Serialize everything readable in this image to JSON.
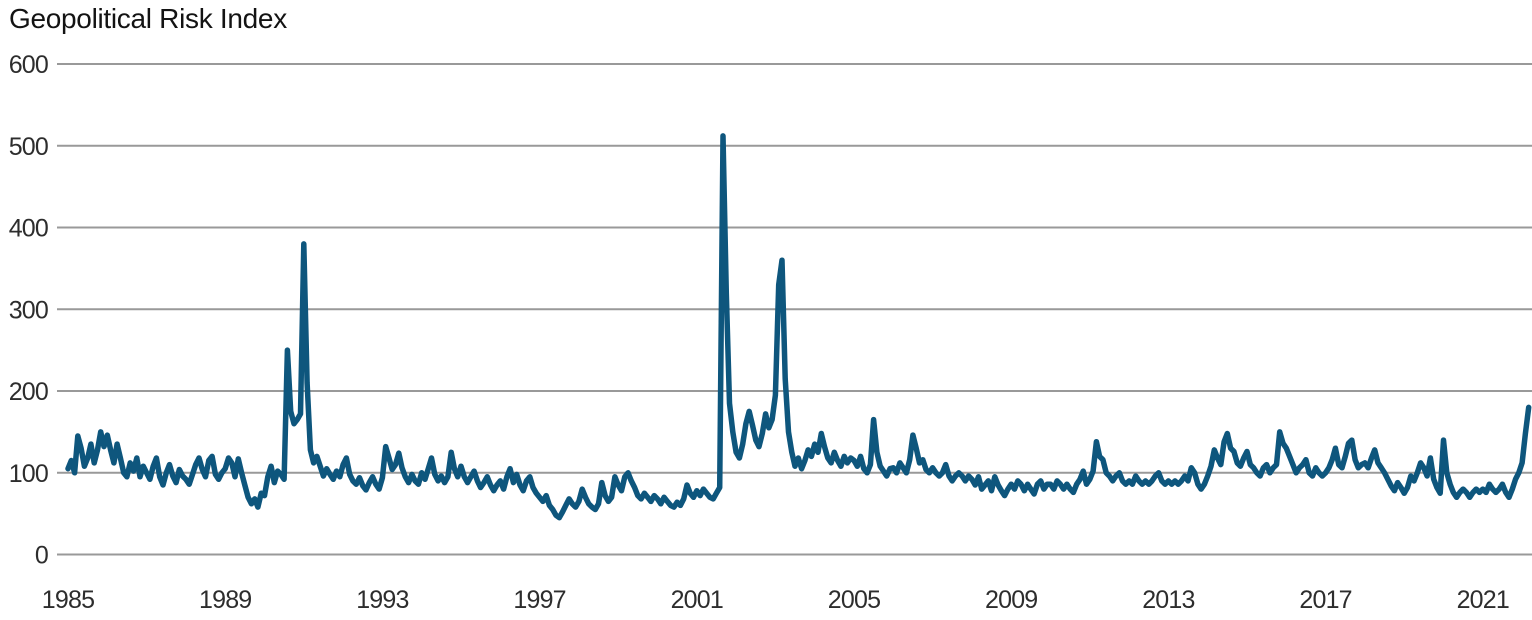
{
  "chart_data": {
    "type": "line",
    "title": "Geopolitical Risk Index",
    "xlabel": "",
    "ylabel": "",
    "x_unit": "month",
    "x_start": "1985-01",
    "x_end": "2022-03",
    "xlim": [
      1985,
      2022.25
    ],
    "ylim": [
      0,
      600
    ],
    "yticks": [
      0,
      100,
      200,
      300,
      400,
      500,
      600
    ],
    "xticks": [
      1985,
      1989,
      1993,
      1997,
      2001,
      2005,
      2009,
      2013,
      2017,
      2021
    ],
    "grid": "horizontal",
    "legend": "none",
    "colors": {
      "line": "#0e567d",
      "grid": "#999999",
      "tick_text": "#2d2d2d",
      "title_text": "#131313",
      "background": "#ffffff"
    },
    "series": [
      {
        "name": "Geopolitical Risk Index (monthly)",
        "color": "#0e567d",
        "values": [
          105,
          115,
          100,
          145,
          130,
          108,
          118,
          135,
          112,
          128,
          150,
          132,
          146,
          128,
          112,
          135,
          118,
          100,
          95,
          112,
          102,
          118,
          95,
          108,
          100,
          92,
          108,
          118,
          95,
          85,
          100,
          110,
          96,
          88,
          104,
          96,
          92,
          86,
          98,
          110,
          118,
          104,
          95,
          115,
          120,
          98,
          92,
          100,
          105,
          118,
          112,
          95,
          117,
          100,
          85,
          70,
          62,
          68,
          58,
          75,
          72,
          95,
          108,
          88,
          102,
          98,
          92,
          250,
          175,
          160,
          165,
          172,
          380,
          210,
          128,
          112,
          120,
          108,
          96,
          105,
          98,
          92,
          102,
          95,
          110,
          118,
          98,
          90,
          86,
          94,
          84,
          79,
          88,
          95,
          86,
          80,
          94,
          132,
          118,
          104,
          110,
          124,
          106,
          95,
          88,
          98,
          90,
          86,
          100,
          92,
          105,
          118,
          98,
          90,
          96,
          88,
          95,
          125,
          105,
          95,
          108,
          95,
          88,
          95,
          102,
          90,
          82,
          88,
          95,
          85,
          78,
          85,
          90,
          80,
          95,
          105,
          88,
          98,
          85,
          78,
          90,
          95,
          82,
          75,
          70,
          65,
          72,
          60,
          55,
          48,
          45,
          52,
          60,
          68,
          62,
          58,
          65,
          80,
          70,
          62,
          58,
          55,
          62,
          88,
          72,
          65,
          70,
          95,
          85,
          78,
          95,
          100,
          90,
          82,
          72,
          68,
          75,
          70,
          65,
          72,
          68,
          62,
          70,
          65,
          60,
          58,
          64,
          60,
          68,
          85,
          75,
          70,
          78,
          72,
          80,
          75,
          70,
          68,
          75,
          82,
          512,
          320,
          185,
          150,
          125,
          118,
          135,
          160,
          175,
          158,
          140,
          132,
          148,
          172,
          155,
          165,
          195,
          330,
          360,
          215,
          150,
          125,
          108,
          118,
          105,
          115,
          128,
          120,
          135,
          125,
          148,
          132,
          118,
          112,
          125,
          115,
          108,
          120,
          112,
          118,
          115,
          108,
          120,
          105,
          100,
          110,
          165,
          125,
          108,
          102,
          96,
          105,
          106,
          100,
          112,
          106,
          100,
          116,
          146,
          130,
          112,
          116,
          104,
          100,
          106,
          100,
          96,
          100,
          110,
          96,
          90,
          96,
          100,
          96,
          90,
          96,
          92,
          85,
          95,
          80,
          85,
          90,
          78,
          95,
          85,
          78,
          72,
          80,
          86,
          80,
          90,
          86,
          78,
          86,
          80,
          74,
          86,
          90,
          80,
          86,
          86,
          80,
          90,
          86,
          80,
          86,
          80,
          76,
          86,
          92,
          102,
          86,
          92,
          102,
          138,
          120,
          116,
          100,
          96,
          90,
          96,
          100,
          90,
          86,
          90,
          86,
          96,
          90,
          86,
          90,
          86,
          90,
          96,
          100,
          90,
          86,
          90,
          86,
          90,
          86,
          90,
          96,
          90,
          106,
          100,
          86,
          80,
          86,
          96,
          108,
          128,
          118,
          110,
          138,
          148,
          130,
          126,
          112,
          108,
          118,
          126,
          110,
          106,
          100,
          96,
          106,
          110,
          100,
          106,
          110,
          150,
          136,
          130,
          120,
          110,
          100,
          106,
          110,
          116,
          100,
          96,
          106,
          100,
          96,
          100,
          106,
          116,
          130,
          110,
          106,
          120,
          136,
          140,
          116,
          106,
          110,
          112,
          106,
          118,
          128,
          112,
          106,
          100,
          92,
          84,
          78,
          88,
          82,
          75,
          82,
          96,
          90,
          100,
          112,
          106,
          96,
          118,
          92,
          82,
          75,
          140,
          100,
          86,
          76,
          70,
          76,
          80,
          76,
          70,
          76,
          80,
          76,
          80,
          76,
          86,
          80,
          76,
          80,
          86,
          76,
          70,
          80,
          92,
          100,
          112,
          148,
          180
        ]
      }
    ]
  }
}
